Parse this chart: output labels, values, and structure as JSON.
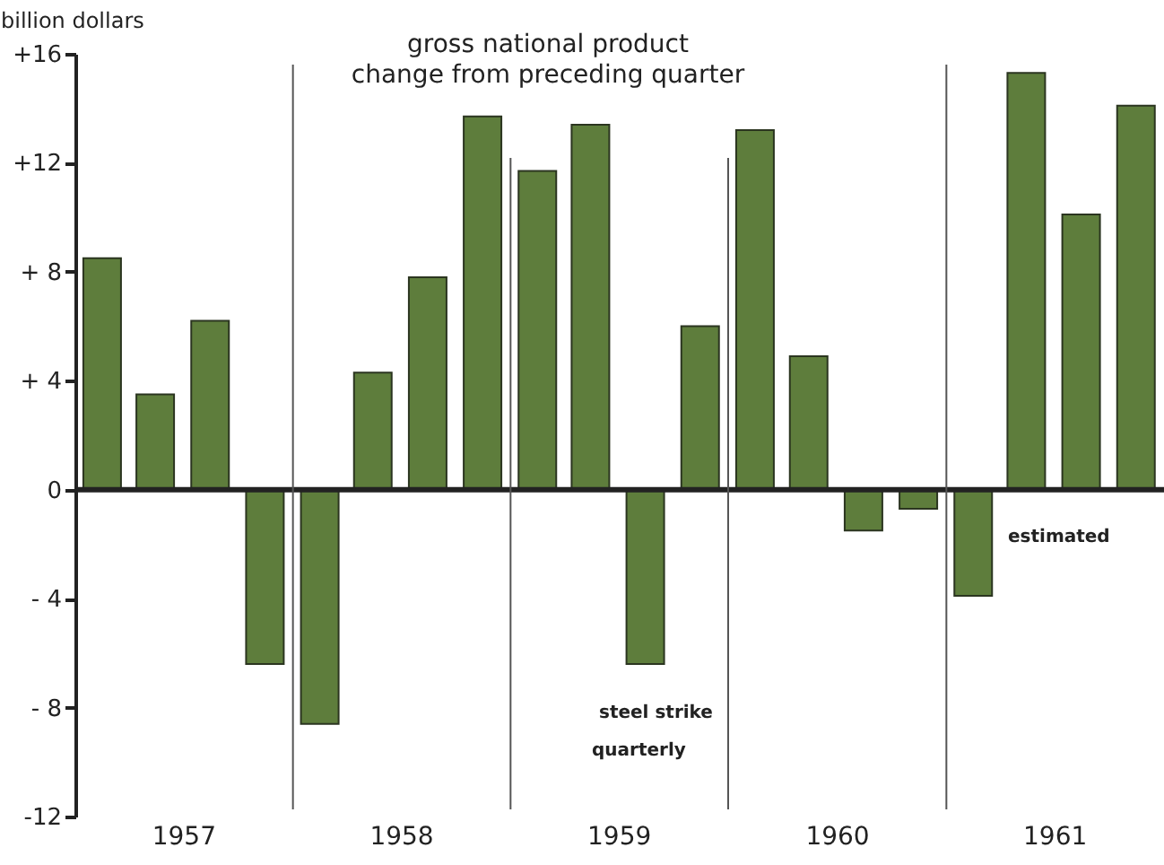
{
  "chart_data": {
    "type": "bar",
    "title": "gross national product",
    "subtitle": "change from preceding quarter",
    "ylabel": "billion dollars",
    "x": [
      "1957-02-15",
      "1957-05-15",
      "1957-08-15",
      "1957-11-15",
      "1958-02-15",
      "1958-05-15",
      "1958-08-15",
      "1958-11-15",
      "1959-02-15",
      "1959-05-15",
      "1959-08-15",
      "1959-11-15",
      "1960-02-15",
      "1960-05-15",
      "1960-08-15",
      "1960-11-15",
      "1961-02-15",
      "1961-05-15",
      "1961-08-15",
      "1961-11-15"
    ],
    "values": [
      8.5,
      3.5,
      6.2,
      -6.4,
      -8.6,
      4.3,
      7.8,
      13.7,
      11.7,
      13.4,
      -6.4,
      6.0,
      13.2,
      4.9,
      -1.5,
      -0.7,
      -3.9,
      15.3,
      10.1,
      14.1
    ],
    "color": "#5e7d3c",
    "xlim": [
      "1957-01-01",
      "1962-01-01"
    ],
    "xticks": [
      {
        "value": "1957-07-01",
        "label": "1957"
      },
      {
        "value": "1958-07-01",
        "label": "1958"
      },
      {
        "value": "1959-07-01",
        "label": "1959"
      },
      {
        "value": "1960-07-01",
        "label": "1960"
      },
      {
        "value": "1961-07-01",
        "label": "1961"
      }
    ],
    "ylim": [
      -12,
      16
    ],
    "yticks": [
      {
        "value": 16,
        "label": "+16"
      },
      {
        "value": 12,
        "label": "+12"
      },
      {
        "value": 8,
        "label": "+ 8"
      },
      {
        "value": 4,
        "label": "+ 4"
      },
      0,
      {
        "value": -4,
        "label": "- 4"
      },
      {
        "value": -8,
        "label": "- 8"
      },
      {
        "value": -12,
        "label": "-12"
      }
    ],
    "ref_lines": [
      {
        "axis": "y",
        "value": 0
      },
      {
        "axis": "x",
        "value": "1958-01-01"
      },
      {
        "axis": "x",
        "value": "1959-01-01"
      },
      {
        "axis": "x",
        "value": "1960-01-01"
      },
      {
        "axis": "x",
        "value": "1961-01-01"
      }
    ],
    "annotations": [
      "quarterly",
      "steel strike",
      "estimated"
    ],
    "grid": false
  }
}
